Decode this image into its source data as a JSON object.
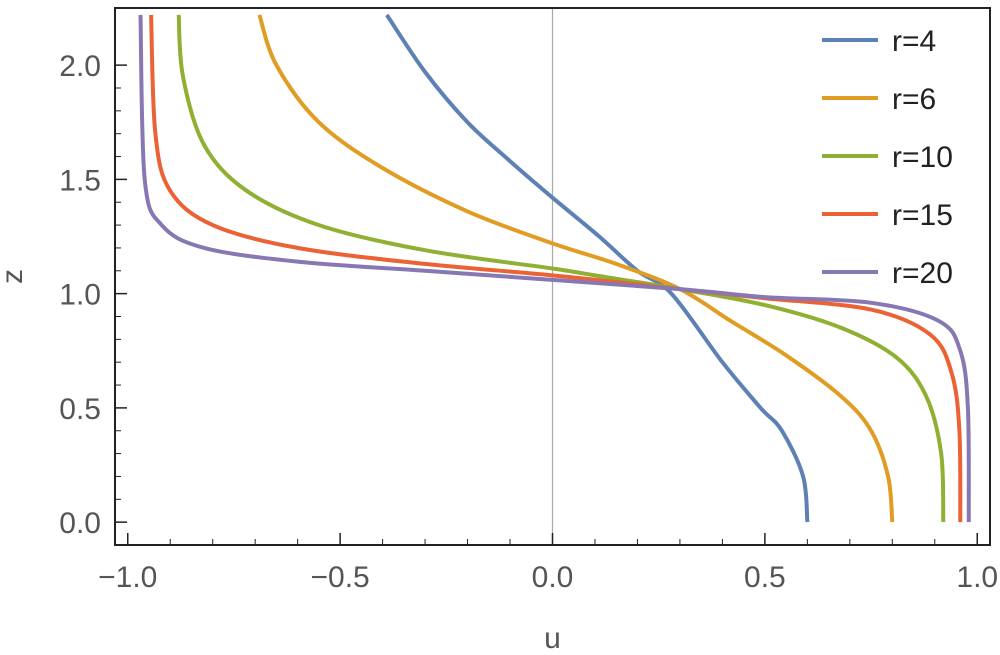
{
  "chart_data": {
    "type": "line",
    "xlabel": "u",
    "ylabel": "z",
    "xlim": [
      -1.03,
      1.03
    ],
    "ylim": [
      -0.1,
      2.25
    ],
    "x_ticks": [
      -1.0,
      -0.5,
      0.0,
      0.5,
      1.0
    ],
    "x_tick_labels": [
      "−1.0",
      "−0.5",
      "0.0",
      "0.5",
      "1.0"
    ],
    "y_ticks": [
      0.0,
      0.5,
      1.0,
      1.5,
      2.0
    ],
    "y_tick_labels": [
      "0.0",
      "0.5",
      "1.0",
      "1.5",
      "2.0"
    ],
    "grid": false,
    "reference_line_x": 0.0,
    "legend_position": "top-right",
    "colors": {
      "frame": "#222222",
      "reference_line": "#aaaaaa"
    },
    "series": [
      {
        "name": "r=4",
        "color": "#5e81b5",
        "points": [
          [
            0.6,
            0.0
          ],
          [
            0.59,
            0.2
          ],
          [
            0.54,
            0.4
          ],
          [
            0.49,
            0.5
          ],
          [
            0.4,
            0.7
          ],
          [
            0.28,
            1.0
          ],
          [
            0.2,
            1.1
          ],
          [
            0.11,
            1.25
          ],
          [
            0.0,
            1.42
          ],
          [
            -0.1,
            1.58
          ],
          [
            -0.2,
            1.75
          ],
          [
            -0.3,
            1.97
          ],
          [
            -0.39,
            2.22
          ]
        ]
      },
      {
        "name": "r=6",
        "color": "#e19c24",
        "points": [
          [
            0.8,
            0.0
          ],
          [
            0.79,
            0.2
          ],
          [
            0.75,
            0.4
          ],
          [
            0.68,
            0.55
          ],
          [
            0.55,
            0.73
          ],
          [
            0.42,
            0.88
          ],
          [
            0.3,
            1.02
          ],
          [
            0.15,
            1.13
          ],
          [
            0.0,
            1.22
          ],
          [
            -0.2,
            1.36
          ],
          [
            -0.4,
            1.55
          ],
          [
            -0.55,
            1.75
          ],
          [
            -0.65,
            2.0
          ],
          [
            -0.69,
            2.22
          ]
        ]
      },
      {
        "name": "r=10",
        "color": "#8fb032",
        "points": [
          [
            0.92,
            0.0
          ],
          [
            0.915,
            0.3
          ],
          [
            0.88,
            0.55
          ],
          [
            0.81,
            0.72
          ],
          [
            0.68,
            0.85
          ],
          [
            0.5,
            0.95
          ],
          [
            0.3,
            1.02
          ],
          [
            0.1,
            1.08
          ],
          [
            0.0,
            1.11
          ],
          [
            -0.3,
            1.19
          ],
          [
            -0.55,
            1.3
          ],
          [
            -0.72,
            1.45
          ],
          [
            -0.82,
            1.65
          ],
          [
            -0.87,
            1.95
          ],
          [
            -0.88,
            2.22
          ]
        ]
      },
      {
        "name": "r=15",
        "color": "#eb6235",
        "points": [
          [
            0.96,
            0.0
          ],
          [
            0.958,
            0.4
          ],
          [
            0.94,
            0.65
          ],
          [
            0.89,
            0.82
          ],
          [
            0.75,
            0.93
          ],
          [
            0.5,
            0.98
          ],
          [
            0.3,
            1.02
          ],
          [
            0.0,
            1.08
          ],
          [
            -0.3,
            1.13
          ],
          [
            -0.6,
            1.2
          ],
          [
            -0.8,
            1.3
          ],
          [
            -0.9,
            1.45
          ],
          [
            -0.935,
            1.7
          ],
          [
            -0.945,
            2.22
          ]
        ]
      },
      {
        "name": "r=20",
        "color": "#8778b3",
        "points": [
          [
            0.98,
            0.0
          ],
          [
            0.978,
            0.5
          ],
          [
            0.96,
            0.75
          ],
          [
            0.91,
            0.88
          ],
          [
            0.75,
            0.96
          ],
          [
            0.5,
            0.985
          ],
          [
            0.3,
            1.02
          ],
          [
            0.0,
            1.06
          ],
          [
            -0.3,
            1.1
          ],
          [
            -0.6,
            1.14
          ],
          [
            -0.82,
            1.2
          ],
          [
            -0.92,
            1.3
          ],
          [
            -0.96,
            1.5
          ],
          [
            -0.97,
            2.22
          ]
        ]
      }
    ]
  }
}
